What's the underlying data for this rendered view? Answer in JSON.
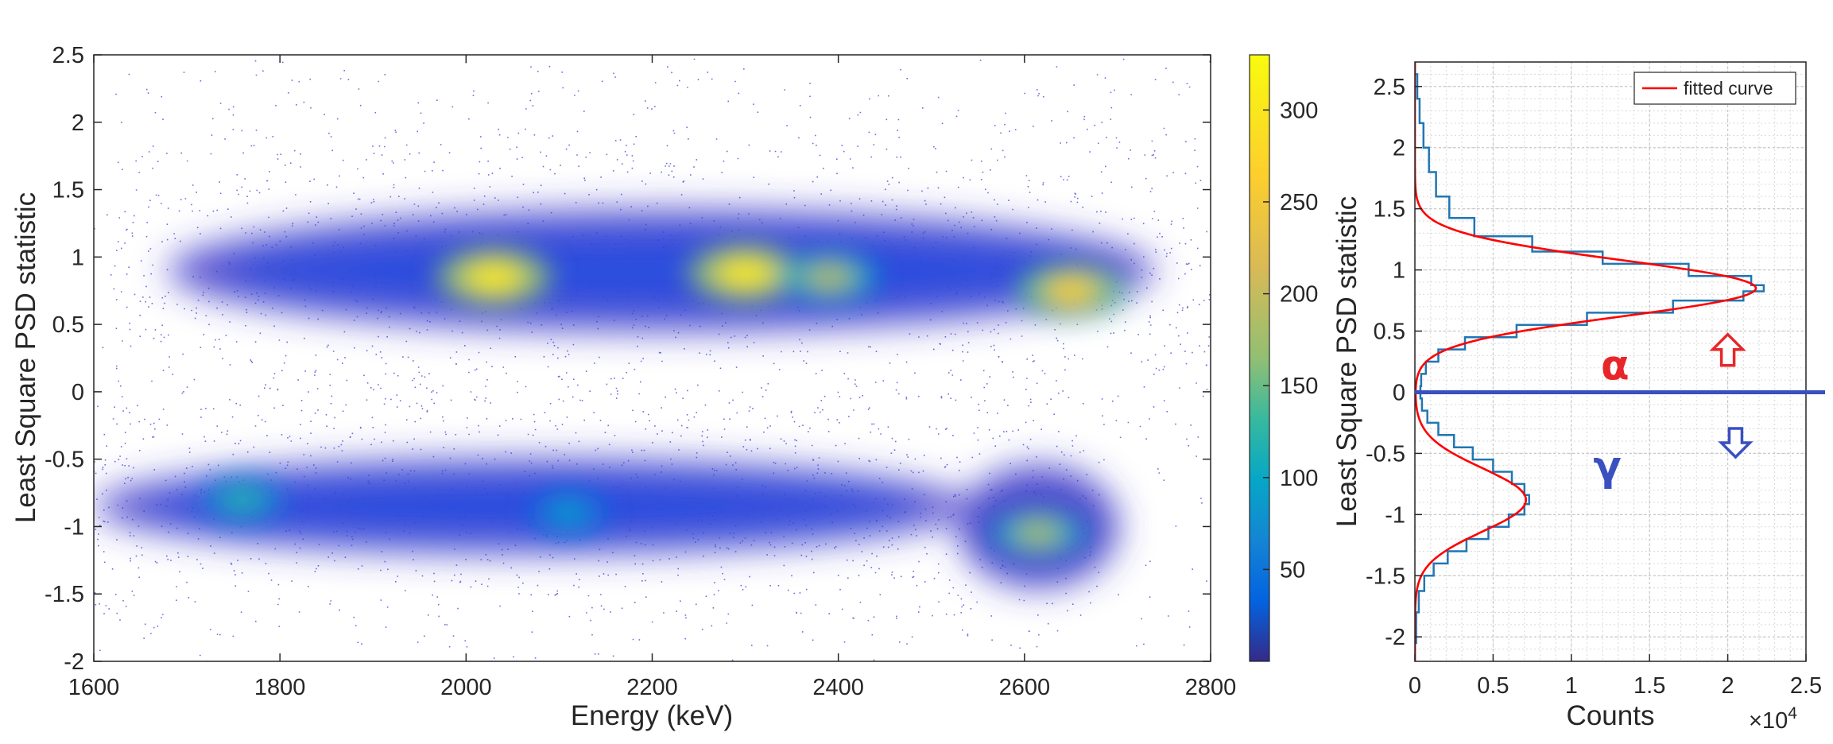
{
  "chart_data": [
    {
      "type": "heatmap",
      "title": "",
      "xlabel": "Energy (keV)",
      "ylabel": "Least Square PSD statistic",
      "xlim": [
        1600,
        2800
      ],
      "ylim": [
        -2,
        2.5
      ],
      "x_ticks": [
        "1600",
        "1800",
        "2000",
        "2200",
        "2400",
        "2600",
        "2800"
      ],
      "y_ticks": [
        "-2",
        "-1.5",
        "-1",
        "-0.5",
        "0",
        "0.5",
        "1",
        "1.5",
        "2",
        "2.5"
      ],
      "colorbar": {
        "colormap": "parula",
        "range": [
          0,
          330
        ],
        "ticks": [
          "50",
          "100",
          "150",
          "200",
          "250",
          "300"
        ]
      },
      "bands": [
        {
          "x_range": [
            1680,
            2740
          ],
          "y_center": 0.9,
          "y_spread": 0.45
        },
        {
          "x_range": [
            1600,
            2540
          ],
          "y_center": -0.85,
          "y_spread": 0.35
        }
      ],
      "hotspots": [
        {
          "x": 2030,
          "y": 0.85,
          "count": 300
        },
        {
          "x": 2300,
          "y": 0.88,
          "count": 300
        },
        {
          "x": 2390,
          "y": 0.85,
          "count": 190
        },
        {
          "x": 2650,
          "y": 0.75,
          "count": 260
        },
        {
          "x": 1760,
          "y": -0.8,
          "count": 120
        },
        {
          "x": 2110,
          "y": -0.9,
          "count": 90
        },
        {
          "x": 2615,
          "y": -1.05,
          "count": 180
        }
      ]
    },
    {
      "type": "line",
      "title": "",
      "xlabel": "Counts",
      "ylabel": "Least Square PSD statistic",
      "x_exponent_label": "×10",
      "x_exponent": "4",
      "xlim": [
        0,
        25000
      ],
      "ylim": [
        -2.2,
        2.7
      ],
      "x_ticks": [
        "0",
        "0.5",
        "1",
        "1.5",
        "2",
        "2.5"
      ],
      "y_ticks": [
        "-2",
        "-1.5",
        "-1",
        "-0.5",
        "0",
        "0.5",
        "1",
        "1.5",
        "2",
        "2.5"
      ],
      "grid": true,
      "legend": {
        "position": "top-right",
        "entries": [
          "fitted curve"
        ]
      },
      "histogram": {
        "color": "#1f77b4",
        "points": [
          {
            "y": 2.7,
            "x": 0
          },
          {
            "y": 2.5,
            "x": 150
          },
          {
            "y": 2.3,
            "x": 300
          },
          {
            "y": 2.1,
            "x": 550
          },
          {
            "y": 1.9,
            "x": 900
          },
          {
            "y": 1.7,
            "x": 1350
          },
          {
            "y": 1.5,
            "x": 2200
          },
          {
            "y": 1.35,
            "x": 3800
          },
          {
            "y": 1.2,
            "x": 7500
          },
          {
            "y": 1.1,
            "x": 12000
          },
          {
            "y": 1.0,
            "x": 17500
          },
          {
            "y": 0.9,
            "x": 21500
          },
          {
            "y": 0.85,
            "x": 22300
          },
          {
            "y": 0.8,
            "x": 21000
          },
          {
            "y": 0.7,
            "x": 16500
          },
          {
            "y": 0.6,
            "x": 11000
          },
          {
            "y": 0.5,
            "x": 6500
          },
          {
            "y": 0.4,
            "x": 3200
          },
          {
            "y": 0.3,
            "x": 1500
          },
          {
            "y": 0.2,
            "x": 700
          },
          {
            "y": 0.1,
            "x": 400
          },
          {
            "y": 0.0,
            "x": 350
          },
          {
            "y": -0.1,
            "x": 450
          },
          {
            "y": -0.2,
            "x": 800
          },
          {
            "y": -0.3,
            "x": 1500
          },
          {
            "y": -0.4,
            "x": 2500
          },
          {
            "y": -0.5,
            "x": 3700
          },
          {
            "y": -0.6,
            "x": 5000
          },
          {
            "y": -0.7,
            "x": 6200
          },
          {
            "y": -0.8,
            "x": 7000
          },
          {
            "y": -0.88,
            "x": 7300
          },
          {
            "y": -0.95,
            "x": 7000
          },
          {
            "y": -1.05,
            "x": 6000
          },
          {
            "y": -1.15,
            "x": 4700
          },
          {
            "y": -1.25,
            "x": 3300
          },
          {
            "y": -1.35,
            "x": 2100
          },
          {
            "y": -1.45,
            "x": 1200
          },
          {
            "y": -1.55,
            "x": 600
          },
          {
            "y": -1.7,
            "x": 250
          },
          {
            "y": -1.9,
            "x": 80
          },
          {
            "y": -2.2,
            "x": 0
          }
        ]
      },
      "fitted_curve": {
        "name": "fitted curve",
        "color": "#ff0000",
        "components": [
          {
            "amplitude": 21800,
            "mean": 0.85,
            "sigma": 0.23
          },
          {
            "amplitude": 7100,
            "mean": -0.88,
            "sigma": 0.26
          }
        ]
      },
      "threshold_line": {
        "y": 0,
        "color": "#3a4fc0"
      },
      "annotations": [
        {
          "text": "α",
          "x": 12800,
          "y": 0.22,
          "color": "#e8262a"
        },
        {
          "text": "γ",
          "x": 12300,
          "y": -0.6,
          "color": "#3a4fc0"
        },
        {
          "symbol": "arrow-up",
          "x": 20000,
          "y": 0.33,
          "color": "#e8262a"
        },
        {
          "symbol": "arrow-down",
          "x": 20500,
          "y": -0.4,
          "color": "#3a4fc0"
        }
      ]
    }
  ]
}
